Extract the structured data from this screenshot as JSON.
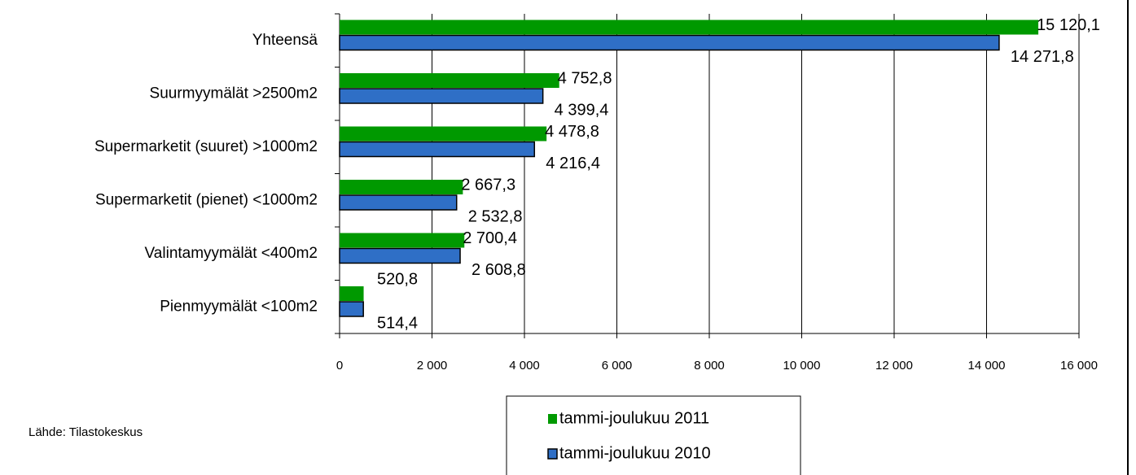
{
  "chart_data": {
    "type": "barh",
    "categories": [
      "Yhteensä",
      "Suurmyymälät >2500m2",
      "Supermarketit (suuret) >1000m2",
      "Supermarketit (pienet) <1000m2",
      "Valintamyymälät <400m2",
      "Pienmyymälät  <100m2"
    ],
    "series": [
      {
        "name": "tammi-joulukuu 2011",
        "color": "#009900",
        "values": [
          15120.1,
          4752.8,
          4478.8,
          2667.3,
          2700.4,
          520.8
        ],
        "value_labels": [
          "15 120,1",
          "4 752,8",
          "4 478,8",
          "2 667,3",
          "2 700,4",
          "520,8"
        ]
      },
      {
        "name": "tammi-joulukuu 2010",
        "color": "#2f6fc6",
        "values": [
          14271.8,
          4399.4,
          4216.4,
          2532.8,
          2608.8,
          514.4
        ],
        "value_labels": [
          "14 271,8",
          "4 399,4",
          "4 216,4",
          "2 532,8",
          "2 608,8",
          "514,4"
        ]
      }
    ],
    "xlim": [
      0,
      16000
    ],
    "xticks": [
      0,
      {
        "value": 2000,
        "label": "2 000"
      },
      {
        "value": 4000,
        "label": "4 000"
      },
      {
        "value": 6000,
        "label": "6 000"
      },
      {
        "value": 8000,
        "label": "8 000"
      },
      {
        "value": 10000,
        "label": "10 000"
      },
      {
        "value": 12000,
        "label": "12 000"
      },
      {
        "value": 14000,
        "label": "14 000"
      },
      {
        "value": 16000,
        "label": "16 000"
      }
    ],
    "grid": true,
    "legend": "bottom",
    "source": "Lähde: Tilastokeskus"
  }
}
